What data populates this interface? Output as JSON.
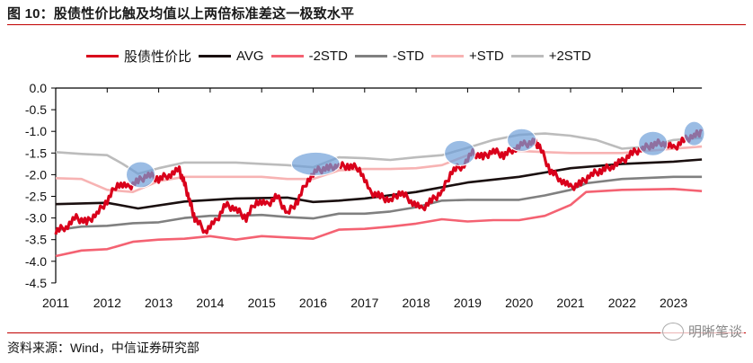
{
  "title": "图 10：股债性价比触及均值以上两倍标准差这一极致水平",
  "source": "资料来源：Wind，中信证券研究部",
  "watermark": "明晰笔谈",
  "watermark_icon": "wechat-icon",
  "colors": {
    "ratio": "#d9001b",
    "avg": "#1a0f0f",
    "minus2std": "#f46272",
    "minus1std": "#808080",
    "plus1std": "#f7b3b3",
    "plus2std": "#bcbcbc",
    "highlight": "#6fa0d8",
    "rule": "#c00000"
  },
  "chart_data": {
    "type": "line",
    "title": "股债性价比触及均值以上两倍标准差这一极致水平",
    "xlabel": "",
    "ylabel": "",
    "xlim": [
      2011,
      2023.55
    ],
    "ylim": [
      -4.5,
      0.0
    ],
    "yticks": [
      "0.0",
      "-0.5",
      "-1.0",
      "-1.5",
      "-2.0",
      "-2.5",
      "-3.0",
      "-3.5",
      "-4.0",
      "-4.5"
    ],
    "ytick_values": [
      0.0,
      -0.5,
      -1.0,
      -1.5,
      -2.0,
      -2.5,
      -3.0,
      -3.5,
      -4.0,
      -4.5
    ],
    "xticks": [
      "2011",
      "2012",
      "2013",
      "2014",
      "2015",
      "2016",
      "2017",
      "2018",
      "2019",
      "2020",
      "2021",
      "2022",
      "2023"
    ],
    "xtick_values": [
      2011,
      2012,
      2013,
      2014,
      2015,
      2016,
      2017,
      2018,
      2019,
      2020,
      2021,
      2022,
      2023
    ],
    "legend_position": "top",
    "grid": false,
    "series": [
      {
        "key": "ratio",
        "name": "股债性价比",
        "x": [
          2011.0,
          2011.2,
          2011.4,
          2011.6,
          2011.8,
          2012.0,
          2012.2,
          2012.4,
          2012.6,
          2012.8,
          2013.0,
          2013.2,
          2013.4,
          2013.5,
          2013.6,
          2013.7,
          2013.9,
          2014.1,
          2014.3,
          2014.5,
          2014.7,
          2014.9,
          2015.1,
          2015.3,
          2015.5,
          2015.7,
          2015.9,
          2016.1,
          2016.3,
          2016.5,
          2016.7,
          2016.9,
          2017.1,
          2017.3,
          2017.5,
          2017.7,
          2017.9,
          2018.1,
          2018.3,
          2018.5,
          2018.7,
          2018.9,
          2019.1,
          2019.3,
          2019.5,
          2019.7,
          2019.9,
          2020.1,
          2020.3,
          2020.4,
          2020.6,
          2020.8,
          2021.0,
          2021.2,
          2021.4,
          2021.6,
          2021.8,
          2022.0,
          2022.2,
          2022.4,
          2022.6,
          2022.8,
          2023.0,
          2023.2,
          2023.4,
          2023.55
        ],
        "y": [
          -3.3,
          -3.2,
          -3.0,
          -3.1,
          -2.9,
          -2.6,
          -2.2,
          -2.3,
          -2.15,
          -2.0,
          -2.1,
          -2.0,
          -1.9,
          -2.2,
          -2.6,
          -3.0,
          -3.3,
          -3.1,
          -2.7,
          -2.8,
          -3.0,
          -2.6,
          -2.7,
          -2.5,
          -2.9,
          -2.6,
          -2.1,
          -1.9,
          -1.85,
          -1.8,
          -1.8,
          -1.85,
          -2.4,
          -2.5,
          -2.6,
          -2.4,
          -2.6,
          -2.8,
          -2.6,
          -2.4,
          -1.9,
          -1.8,
          -1.5,
          -1.6,
          -1.45,
          -1.55,
          -1.4,
          -1.3,
          -1.25,
          -1.35,
          -1.9,
          -2.1,
          -2.3,
          -2.2,
          -2.0,
          -1.9,
          -1.8,
          -1.7,
          -1.5,
          -1.4,
          -1.3,
          -1.25,
          -1.4,
          -1.2,
          -1.1,
          -1.0
        ]
      },
      {
        "key": "avg",
        "name": "AVG",
        "x": [
          2011,
          2012,
          2012.6,
          2013.5,
          2014.5,
          2015.5,
          2016.0,
          2016.5,
          2017,
          2018,
          2019,
          2020,
          2020.5,
          2021,
          2022,
          2023,
          2023.55
        ],
        "y": [
          -2.68,
          -2.65,
          -2.78,
          -2.62,
          -2.55,
          -2.53,
          -2.63,
          -2.6,
          -2.55,
          -2.4,
          -2.18,
          -2.05,
          -1.95,
          -1.85,
          -1.75,
          -1.7,
          -1.65
        ]
      },
      {
        "key": "minus2std",
        "name": "-2STD",
        "x": [
          2011,
          2011.5,
          2012,
          2012.5,
          2013,
          2013.5,
          2014,
          2014.5,
          2015,
          2015.5,
          2016,
          2016.5,
          2017,
          2017.5,
          2018,
          2018.5,
          2019,
          2019.5,
          2020,
          2020.5,
          2021,
          2021.3,
          2022,
          2023,
          2023.55
        ],
        "y": [
          -3.88,
          -3.75,
          -3.72,
          -3.55,
          -3.5,
          -3.48,
          -3.42,
          -3.5,
          -3.42,
          -3.45,
          -3.48,
          -3.27,
          -3.25,
          -3.2,
          -3.13,
          -3.03,
          -3.08,
          -3.05,
          -3.05,
          -2.95,
          -2.7,
          -2.4,
          -2.35,
          -2.33,
          -2.38
        ]
      },
      {
        "key": "minus1std",
        "name": "-STD",
        "x": [
          2011,
          2011.5,
          2012,
          2012.5,
          2013,
          2013.5,
          2014,
          2014.5,
          2015,
          2015.5,
          2016,
          2016.5,
          2017,
          2017.5,
          2018,
          2018.5,
          2019,
          2020,
          2020.5,
          2021,
          2021.3,
          2022,
          2023,
          2023.55
        ],
        "y": [
          -3.28,
          -3.2,
          -3.18,
          -3.12,
          -3.1,
          -3.0,
          -2.95,
          -2.95,
          -2.93,
          -2.98,
          -3.01,
          -2.9,
          -2.9,
          -2.85,
          -2.75,
          -2.6,
          -2.58,
          -2.58,
          -2.48,
          -2.35,
          -2.2,
          -2.1,
          -2.05,
          -2.05
        ]
      },
      {
        "key": "plus1std",
        "name": "+STD",
        "x": [
          2011,
          2011.5,
          2012,
          2012.5,
          2013,
          2013.5,
          2014,
          2014.5,
          2015,
          2015.5,
          2016,
          2016.5,
          2017,
          2017.5,
          2018,
          2018.5,
          2019,
          2019.5,
          2020,
          2020.5,
          2021,
          2021.5,
          2022,
          2023,
          2023.55
        ],
        "y": [
          -2.08,
          -2.1,
          -2.35,
          -2.4,
          -2.15,
          -2.05,
          -2.05,
          -2.05,
          -2.05,
          -2.1,
          -2.1,
          -1.9,
          -1.87,
          -1.87,
          -1.85,
          -1.78,
          -1.55,
          -1.5,
          -1.45,
          -1.48,
          -1.5,
          -1.5,
          -1.5,
          -1.4,
          -1.35
        ]
      },
      {
        "key": "plus2std",
        "name": "+2STD",
        "x": [
          2011,
          2011.5,
          2012,
          2012.3,
          2012.6,
          2013,
          2013.5,
          2014,
          2014.5,
          2015,
          2015.5,
          2016,
          2016.5,
          2017,
          2017.5,
          2018,
          2018.5,
          2019,
          2019.5,
          2020,
          2020.5,
          2021,
          2021.5,
          2022,
          2022.5,
          2023,
          2023.55
        ],
        "y": [
          -1.48,
          -1.52,
          -1.55,
          -1.75,
          -1.98,
          -1.85,
          -1.72,
          -1.72,
          -1.72,
          -1.75,
          -1.78,
          -1.83,
          -1.6,
          -1.62,
          -1.66,
          -1.6,
          -1.55,
          -1.38,
          -1.2,
          -1.08,
          -1.05,
          -1.1,
          -1.2,
          -1.4,
          -1.35,
          -1.2,
          -1.15
        ]
      }
    ],
    "highlights": [
      {
        "x": 2012.65,
        "y": -2.0,
        "rx_years": 0.28,
        "ry_units": 0.3
      },
      {
        "x": 2016.05,
        "y": -1.75,
        "rx_years": 0.47,
        "ry_units": 0.27
      },
      {
        "x": 2018.85,
        "y": -1.5,
        "rx_years": 0.3,
        "ry_units": 0.29
      },
      {
        "x": 2020.05,
        "y": -1.2,
        "rx_years": 0.28,
        "ry_units": 0.26
      },
      {
        "x": 2022.6,
        "y": -1.28,
        "rx_years": 0.28,
        "ry_units": 0.28
      },
      {
        "x": 2023.4,
        "y": -1.05,
        "rx_years": 0.2,
        "ry_units": 0.28
      }
    ]
  }
}
